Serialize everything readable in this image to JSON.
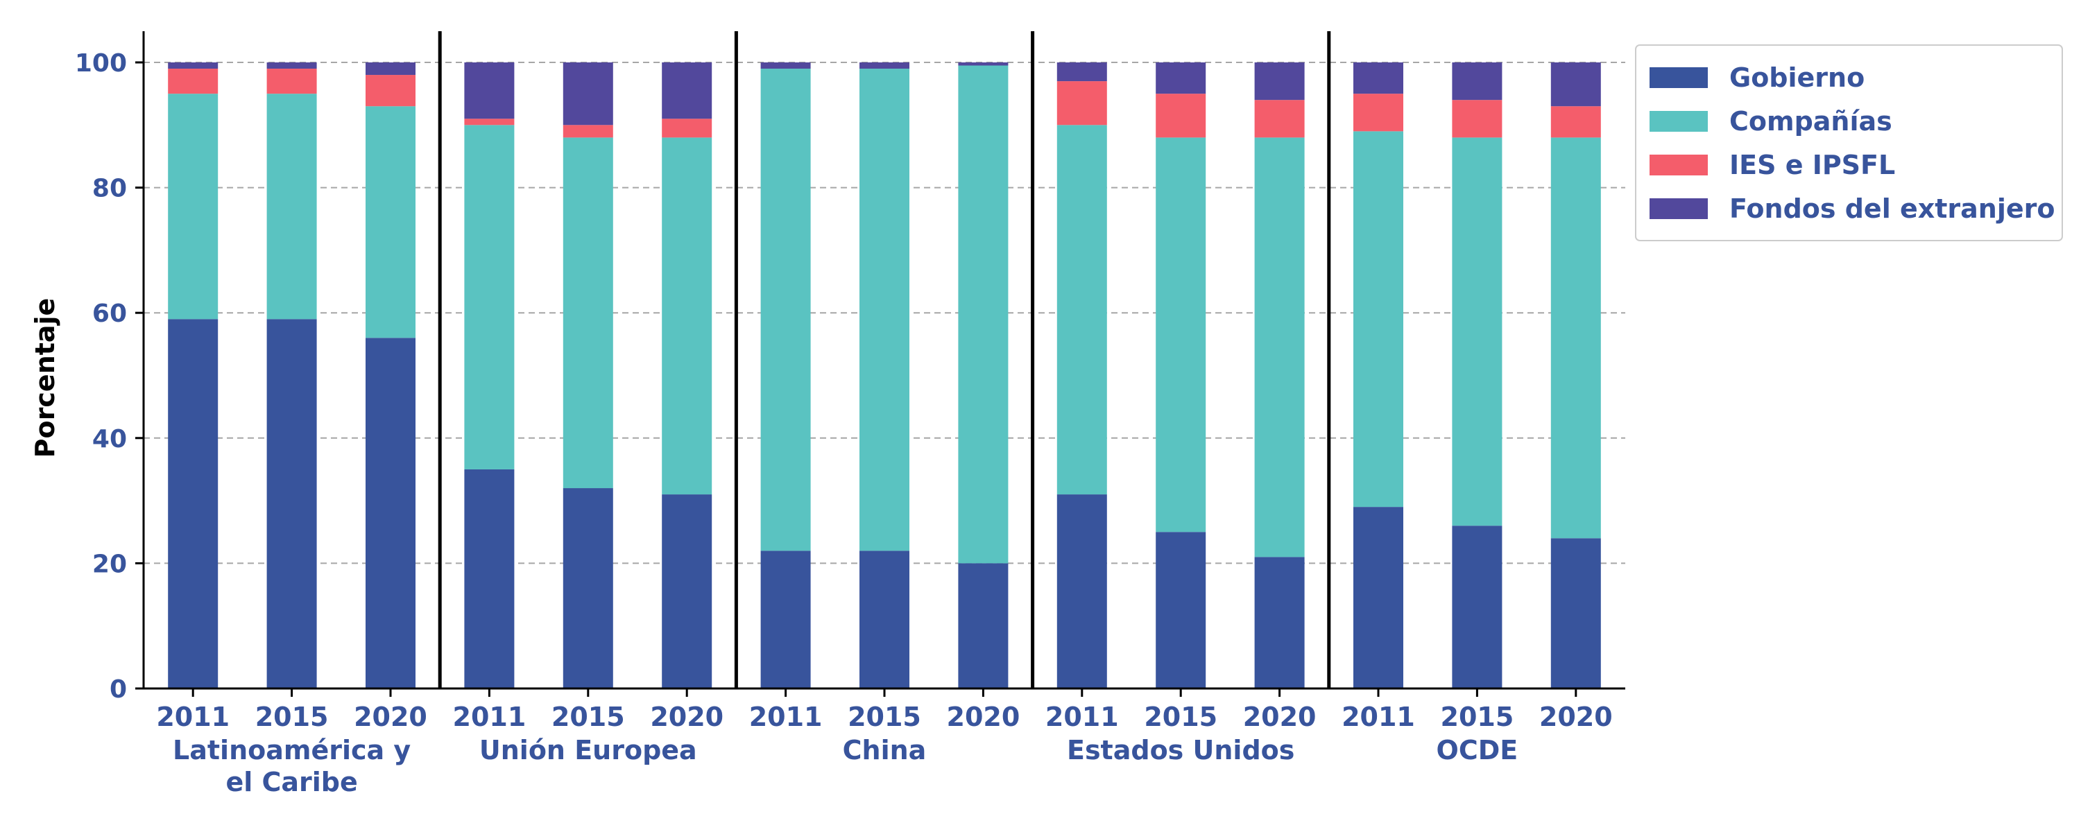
{
  "chart_data": {
    "type": "bar",
    "stacked": true,
    "title": "",
    "xlabel": "",
    "ylabel": "Porcentaje",
    "ylim": [
      0,
      100
    ],
    "yticks": [
      0,
      20,
      40,
      60,
      80,
      100
    ],
    "grid": "horizontal-dashed",
    "legend_position": "right",
    "groups": [
      {
        "name": "Latinoamérica y el Caribe",
        "label_lines": [
          "Latinoamérica y",
          "el Caribe"
        ],
        "years": [
          "2011",
          "2015",
          "2020"
        ]
      },
      {
        "name": "Unión Europea",
        "label_lines": [
          "Unión Europea"
        ],
        "years": [
          "2011",
          "2015",
          "2020"
        ]
      },
      {
        "name": "China",
        "label_lines": [
          "China"
        ],
        "years": [
          "2011",
          "2015",
          "2020"
        ]
      },
      {
        "name": "Estados Unidos",
        "label_lines": [
          "Estados Unidos"
        ],
        "years": [
          "2011",
          "2015",
          "2020"
        ]
      },
      {
        "name": "OCDE",
        "label_lines": [
          "OCDE"
        ],
        "years": [
          "2011",
          "2015",
          "2020"
        ]
      }
    ],
    "series": [
      {
        "name": "Gobierno",
        "color": "#38549c",
        "values": [
          59,
          59,
          56,
          35,
          32,
          31,
          22,
          22,
          20,
          31,
          25,
          21,
          29,
          26,
          24
        ]
      },
      {
        "name": "Compañías",
        "color": "#5ac3c1",
        "values": [
          36,
          36,
          37,
          55,
          56,
          57,
          77,
          77,
          79.5,
          59,
          63,
          67,
          60,
          62,
          64
        ]
      },
      {
        "name": "IES e IPSFL",
        "color": "#f45d6b",
        "values": [
          4,
          4,
          5,
          1,
          2,
          3,
          0,
          0,
          0,
          7,
          7,
          6,
          6,
          6,
          5
        ]
      },
      {
        "name": "Fondos del extranjero",
        "color": "#52489c",
        "values": [
          1,
          1,
          2,
          9,
          10,
          9,
          1,
          1,
          0.5,
          3,
          5,
          6,
          5,
          6,
          7
        ]
      }
    ],
    "colors": {
      "text": "#38549c",
      "axis": "#000000",
      "grid": "#a6a6a6"
    }
  }
}
